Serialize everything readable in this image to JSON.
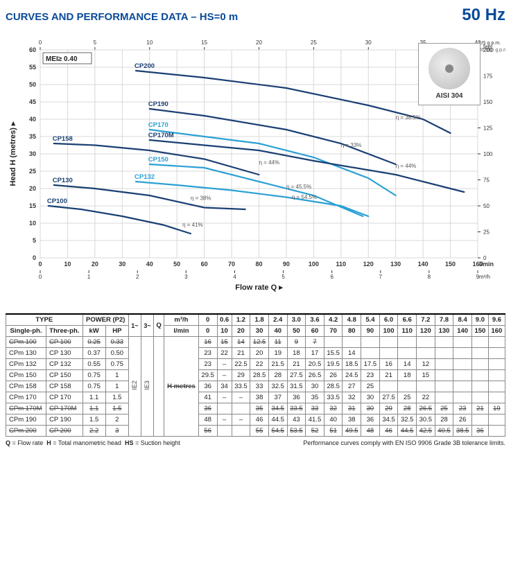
{
  "header": {
    "title": "CURVES AND PERFORMANCE DATA  –  HS=0 m",
    "freq": "50 Hz"
  },
  "chart": {
    "aisi_label": "AISI 304",
    "mei_label": "MEI≥ 0.40",
    "x_label": "Flow rate Q  ▸",
    "y_label": "Head H (metres)  ▸",
    "x_lmin": {
      "min": 0,
      "max": 160,
      "step": 10,
      "unit": "l/min"
    },
    "x_m3h": {
      "min": 0,
      "max": 9,
      "step": 1,
      "unit": "m³/h"
    },
    "x_usgpm": {
      "min": 0,
      "max": 40,
      "step": 5,
      "unit": "US g.p.m."
    },
    "x_impgpm": {
      "min": 0,
      "max": 35,
      "step": 5,
      "unit": "Imp g.p.m."
    },
    "y_m": {
      "min": 0,
      "max": 60,
      "step": 5,
      "unit": ""
    },
    "y_feet": {
      "min": 0,
      "max": 200,
      "step": 25,
      "unit": "feet"
    },
    "grid_color": "#d8d8d8",
    "axis_color": "#444",
    "bg": "#ffffff",
    "curve_dark": "#1a3f73",
    "curve_light": "#2aa0d4",
    "label_font": 9,
    "curves": [
      {
        "name": "CP200",
        "color": "#1a3f73",
        "label_at": 0,
        "pts": [
          [
            35,
            54
          ],
          [
            60,
            52
          ],
          [
            90,
            49
          ],
          [
            120,
            44
          ],
          [
            140,
            40
          ],
          [
            150,
            36
          ]
        ],
        "eff": "η = 38.5%",
        "eff_at": [
          130,
          40
        ]
      },
      {
        "name": "CP190",
        "color": "#1a3f73",
        "label_at": 0,
        "pts": [
          [
            40,
            43
          ],
          [
            60,
            41
          ],
          [
            90,
            37
          ],
          [
            110,
            33
          ],
          [
            130,
            27
          ]
        ],
        "eff": "η = 33%",
        "eff_at": [
          110,
          32
        ]
      },
      {
        "name": "CP170",
        "color": "#2aa0d4",
        "label_at": 0,
        "pts": [
          [
            40,
            37
          ],
          [
            60,
            35
          ],
          [
            80,
            33
          ],
          [
            100,
            29
          ],
          [
            120,
            23
          ],
          [
            130,
            18
          ]
        ],
        "eff": "η = 44%",
        "eff_at": [
          130,
          26
        ]
      },
      {
        "name": "CP170M",
        "color": "#1a3f73",
        "label_at": 0,
        "pts": [
          [
            40,
            34
          ],
          [
            60,
            32.5
          ],
          [
            80,
            31
          ],
          [
            100,
            28
          ],
          [
            130,
            24
          ],
          [
            155,
            19
          ]
        ],
        "eff": "",
        "eff_at": [
          0,
          0
        ]
      },
      {
        "name": "CP158",
        "color": "#1a3f73",
        "label_at": 0,
        "pts": [
          [
            5,
            33
          ],
          [
            20,
            32.5
          ],
          [
            40,
            31
          ],
          [
            60,
            28.5
          ],
          [
            80,
            24
          ]
        ],
        "eff": "η = 44%",
        "eff_at": [
          80,
          27
        ]
      },
      {
        "name": "CP150",
        "color": "#2aa0d4",
        "label_at": 0,
        "pts": [
          [
            40,
            27
          ],
          [
            60,
            26
          ],
          [
            80,
            22
          ],
          [
            100,
            18
          ],
          [
            118,
            12
          ]
        ],
        "eff": "η = 45.5%",
        "eff_at": [
          90,
          20
        ]
      },
      {
        "name": "CP132",
        "color": "#2aa0d4",
        "label_at": 0,
        "pts": [
          [
            35,
            22
          ],
          [
            50,
            21
          ],
          [
            70,
            19.5
          ],
          [
            90,
            17.5
          ],
          [
            110,
            15
          ],
          [
            120,
            12
          ]
        ],
        "eff": "η = 54.5%",
        "eff_at": [
          92,
          17
        ]
      },
      {
        "name": "CP130",
        "color": "#1a3f73",
        "label_at": 0,
        "pts": [
          [
            5,
            21
          ],
          [
            20,
            20
          ],
          [
            40,
            18
          ],
          [
            60,
            14.5
          ],
          [
            75,
            14
          ]
        ],
        "eff": "η = 38%",
        "eff_at": [
          55,
          16.7
        ]
      },
      {
        "name": "CP100",
        "color": "#1a3f73",
        "label_at": 0,
        "pts": [
          [
            3,
            15
          ],
          [
            15,
            14
          ],
          [
            30,
            12
          ],
          [
            45,
            9.5
          ],
          [
            55,
            7
          ]
        ],
        "eff": "η = 41%",
        "eff_at": [
          52,
          9
        ]
      }
    ]
  },
  "table": {
    "headers": {
      "type": "TYPE",
      "single": "Single-ph.",
      "three": "Three-ph.",
      "power": "POWER (P2)",
      "kw": "kW",
      "hp": "HP",
      "ie1": "1~",
      "ie3": "3~",
      "q": "Q",
      "m3h": "m³/h",
      "lmin": "l/min",
      "hmetres": "H metres",
      "ie2": "IE2",
      "ie3l": "IE3"
    },
    "q_m3h": [
      "0",
      "0.6",
      "1.2",
      "1.8",
      "2.4",
      "3.0",
      "3.6",
      "4.2",
      "4.8",
      "5.4",
      "6.0",
      "6.6",
      "7.2",
      "7.8",
      "8.4",
      "9.0",
      "9.6"
    ],
    "q_lmin": [
      "0",
      "10",
      "20",
      "30",
      "40",
      "50",
      "60",
      "70",
      "80",
      "90",
      "100",
      "110",
      "120",
      "130",
      "140",
      "150",
      "160"
    ],
    "rows": [
      {
        "s": "CPm 100",
        "t": "CP 100",
        "kw": "0.25",
        "hp": "0.33",
        "strike": true,
        "v": [
          "16",
          "15",
          "14",
          "12.5",
          "11",
          "9",
          "7",
          "",
          "",
          "",
          "",
          "",
          "",
          "",
          "",
          "",
          ""
        ]
      },
      {
        "s": "CPm 130",
        "t": "CP 130",
        "kw": "0.37",
        "hp": "0.50",
        "strike": false,
        "v": [
          "23",
          "22",
          "21",
          "20",
          "19",
          "18",
          "17",
          "15.5",
          "14",
          "",
          "",
          "",
          "",
          "",
          "",
          "",
          ""
        ]
      },
      {
        "s": "CPm 132",
        "t": "CP 132",
        "kw": "0.55",
        "hp": "0.75",
        "strike": false,
        "v": [
          "23",
          "–",
          "22.5",
          "22",
          "21.5",
          "21",
          "20.5",
          "19.5",
          "18.5",
          "17.5",
          "16",
          "14",
          "12",
          "",
          "",
          "",
          ""
        ]
      },
      {
        "s": "CPm 150",
        "t": "CP 150",
        "kw": "0.75",
        "hp": "1",
        "strike": false,
        "v": [
          "29.5",
          "–",
          "29",
          "28.5",
          "28",
          "27.5",
          "26.5",
          "26",
          "24.5",
          "23",
          "21",
          "18",
          "15",
          "",
          "",
          "",
          ""
        ]
      },
      {
        "s": "CPm 158",
        "t": "CP 158",
        "kw": "0.75",
        "hp": "1",
        "strike": false,
        "v": [
          "36",
          "34",
          "33.5",
          "33",
          "32.5",
          "31.5",
          "30",
          "28.5",
          "27",
          "25",
          "",
          "",
          "",
          "",
          "",
          "",
          ""
        ]
      },
      {
        "s": "CPm 170",
        "t": "CP 170",
        "kw": "1.1",
        "hp": "1.5",
        "strike": false,
        "v": [
          "41",
          "–",
          "–",
          "38",
          "37",
          "36",
          "35",
          "33.5",
          "32",
          "30",
          "27.5",
          "25",
          "22",
          "",
          "",
          "",
          ""
        ]
      },
      {
        "s": "CPm 170M",
        "t": "CP 170M",
        "kw": "1.1",
        "hp": "1.5",
        "strike": true,
        "v": [
          "36",
          "",
          "",
          "35",
          "34.5",
          "33.5",
          "33",
          "32",
          "31",
          "30",
          "29",
          "28",
          "26.5",
          "25",
          "23",
          "21",
          "19"
        ]
      },
      {
        "s": "CPm 190",
        "t": "CP 190",
        "kw": "1.5",
        "hp": "2",
        "strike": false,
        "v": [
          "48",
          "–",
          "–",
          "46",
          "44.5",
          "43",
          "41.5",
          "40",
          "38",
          "36",
          "34.5",
          "32.5",
          "30.5",
          "28",
          "26",
          "",
          ""
        ]
      },
      {
        "s": "CPm 200",
        "t": "CP 200",
        "kw": "2.2",
        "hp": "3",
        "strike": true,
        "v": [
          "56",
          "",
          "",
          "55",
          "54.5",
          "53.5",
          "52",
          "51",
          "49.5",
          "48",
          "46",
          "44.5",
          "42.5",
          "40.5",
          "38.5",
          "36",
          ""
        ]
      }
    ]
  },
  "footer": {
    "left": "Q = Flow rate   H = Total manometric head   HS = Suction height",
    "right": "Performance curves comply with EN ISO 9906 Grade 3B tolerance limits."
  }
}
